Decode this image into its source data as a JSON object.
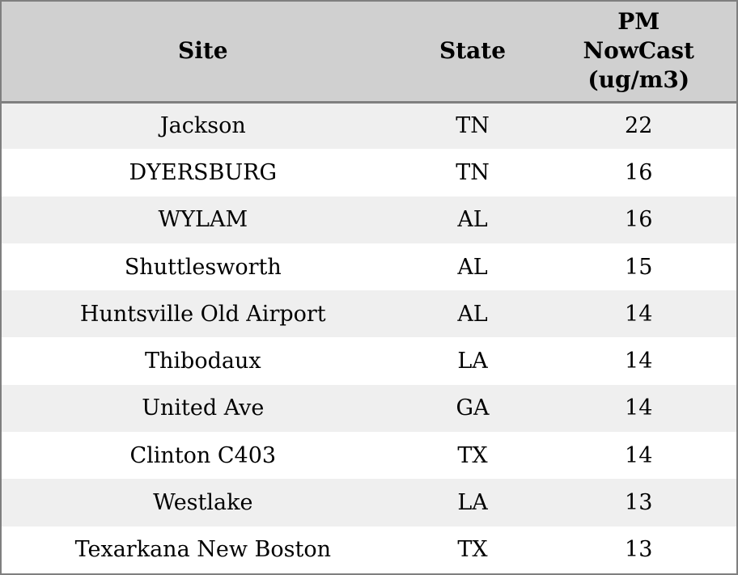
{
  "table": {
    "columns": [
      {
        "id": "site",
        "label": "Site"
      },
      {
        "id": "state",
        "label": "State"
      },
      {
        "id": "pm_nowcast",
        "label": "PM NowCast (ug/m3)"
      }
    ],
    "rows": [
      [
        "Jackson",
        "TN",
        "22"
      ],
      [
        "DYERSBURG",
        "TN",
        "16"
      ],
      [
        "WYLAM",
        "AL",
        "16"
      ],
      [
        "Shuttlesworth",
        "AL",
        "15"
      ],
      [
        "Huntsville Old Airport",
        "AL",
        "14"
      ],
      [
        "Thibodaux",
        "LA",
        "14"
      ],
      [
        "United Ave",
        "GA",
        "14"
      ],
      [
        "Clinton C403",
        "TX",
        "14"
      ],
      [
        "Westlake",
        "LA",
        "13"
      ],
      [
        "Texarkana New Boston",
        "TX",
        "13"
      ]
    ]
  },
  "colors": {
    "header_bg": "#d0d0d0",
    "row_alt_bg": "#efefef",
    "row_bg": "#ffffff",
    "border": "#7f7f7f",
    "text": "#000000"
  }
}
